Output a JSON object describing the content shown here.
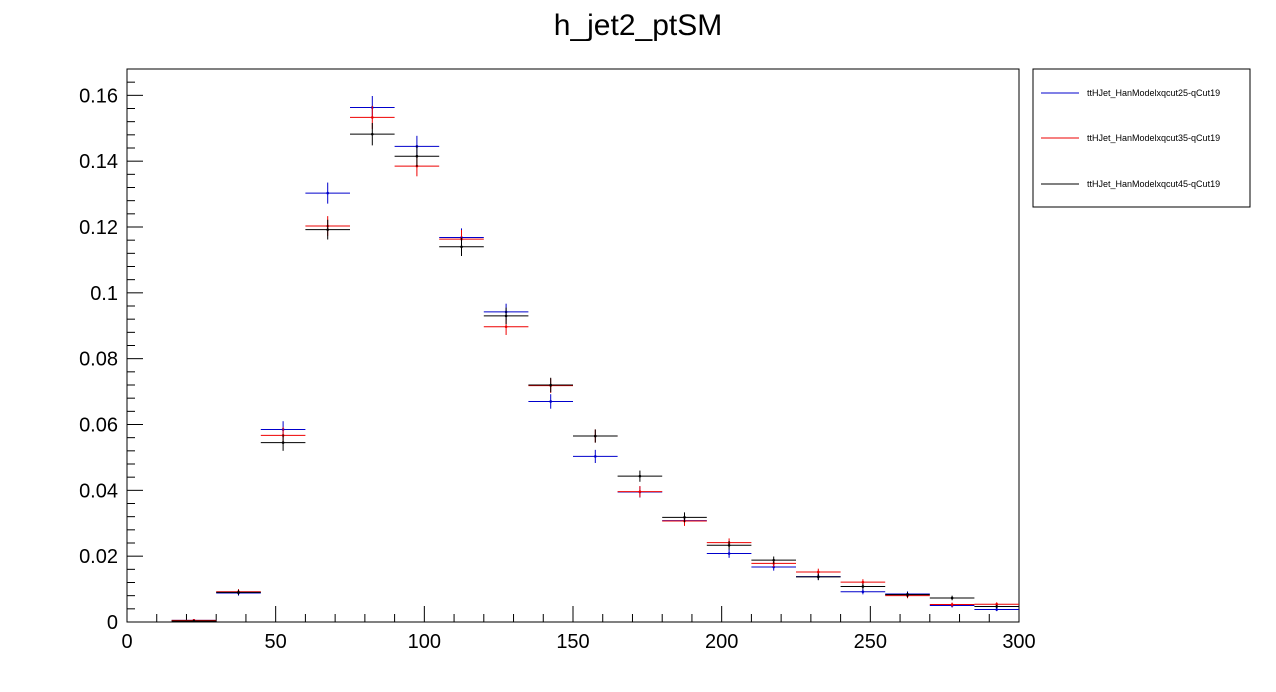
{
  "chart_data": {
    "type": "scatter",
    "title": "h_jet2_ptSM",
    "xlabel": "",
    "ylabel": "",
    "xlim": [
      0,
      300
    ],
    "ylim": [
      0,
      0.168
    ],
    "x_ticks": [
      0,
      50,
      100,
      150,
      200,
      250,
      300
    ],
    "x_tick_labels": [
      "0",
      "50",
      "100",
      "150",
      "200",
      "250",
      "300"
    ],
    "y_ticks": [
      0,
      0.02,
      0.04,
      0.06,
      0.08,
      0.1,
      0.12,
      0.14,
      0.16
    ],
    "y_tick_labels": [
      "0",
      "0.02",
      "0.04",
      "0.06",
      "0.08",
      "0.1",
      "0.12",
      "0.14",
      "0.16"
    ],
    "grid": false,
    "legend_position": "right-outside-top",
    "bin_width": 15,
    "x": [
      22.5,
      37.5,
      52.5,
      67.5,
      82.5,
      97.5,
      112.5,
      127.5,
      142.5,
      157.5,
      172.5,
      187.5,
      202.5,
      217.5,
      232.5,
      247.5,
      262.5,
      277.5,
      292.5
    ],
    "series": [
      {
        "name": "ttHJet_HanModelxqcut25-qCut19",
        "color": "#0000cc",
        "values": [
          0.0005,
          0.0088,
          0.0585,
          0.1303,
          0.1563,
          0.1445,
          0.1168,
          0.0942,
          0.067,
          0.0503,
          0.0395,
          0.0308,
          0.0208,
          0.0167,
          0.0138,
          0.0092,
          0.0085,
          0.005,
          0.0038
        ],
        "errors": [
          0.0003,
          0.0008,
          0.0025,
          0.0032,
          0.0035,
          0.0032,
          0.0028,
          0.0025,
          0.0022,
          0.002,
          0.0017,
          0.0015,
          0.0013,
          0.0011,
          0.001,
          0.0008,
          0.0008,
          0.0006,
          0.0005
        ]
      },
      {
        "name": "ttHJet_HanModelxqcut35-qCut19",
        "color": "#ee0000",
        "values": [
          0.0005,
          0.0092,
          0.0567,
          0.1203,
          0.1533,
          0.1385,
          0.1163,
          0.0897,
          0.0718,
          0.0565,
          0.0396,
          0.0307,
          0.0241,
          0.0178,
          0.0152,
          0.0121,
          0.008,
          0.0053,
          0.0054
        ],
        "errors": [
          0.0003,
          0.0008,
          0.0025,
          0.003,
          0.0035,
          0.0031,
          0.0028,
          0.0025,
          0.0022,
          0.002,
          0.0017,
          0.0015,
          0.0013,
          0.0011,
          0.001,
          0.0009,
          0.0008,
          0.0006,
          0.0006
        ]
      },
      {
        "name": "ttHJet_HanModelxqcut45-qCut19",
        "color": "#000000",
        "values": [
          0.0003,
          0.009,
          0.0545,
          0.1192,
          0.1482,
          0.1415,
          0.114,
          0.093,
          0.072,
          0.0565,
          0.0443,
          0.0318,
          0.0233,
          0.0188,
          0.0137,
          0.0108,
          0.0083,
          0.0073,
          0.0047
        ],
        "errors": [
          0.0003,
          0.0008,
          0.0025,
          0.003,
          0.0034,
          0.0032,
          0.0028,
          0.0025,
          0.0022,
          0.002,
          0.0017,
          0.0015,
          0.0013,
          0.0011,
          0.001,
          0.0009,
          0.0008,
          0.0007,
          0.0005
        ]
      }
    ]
  }
}
